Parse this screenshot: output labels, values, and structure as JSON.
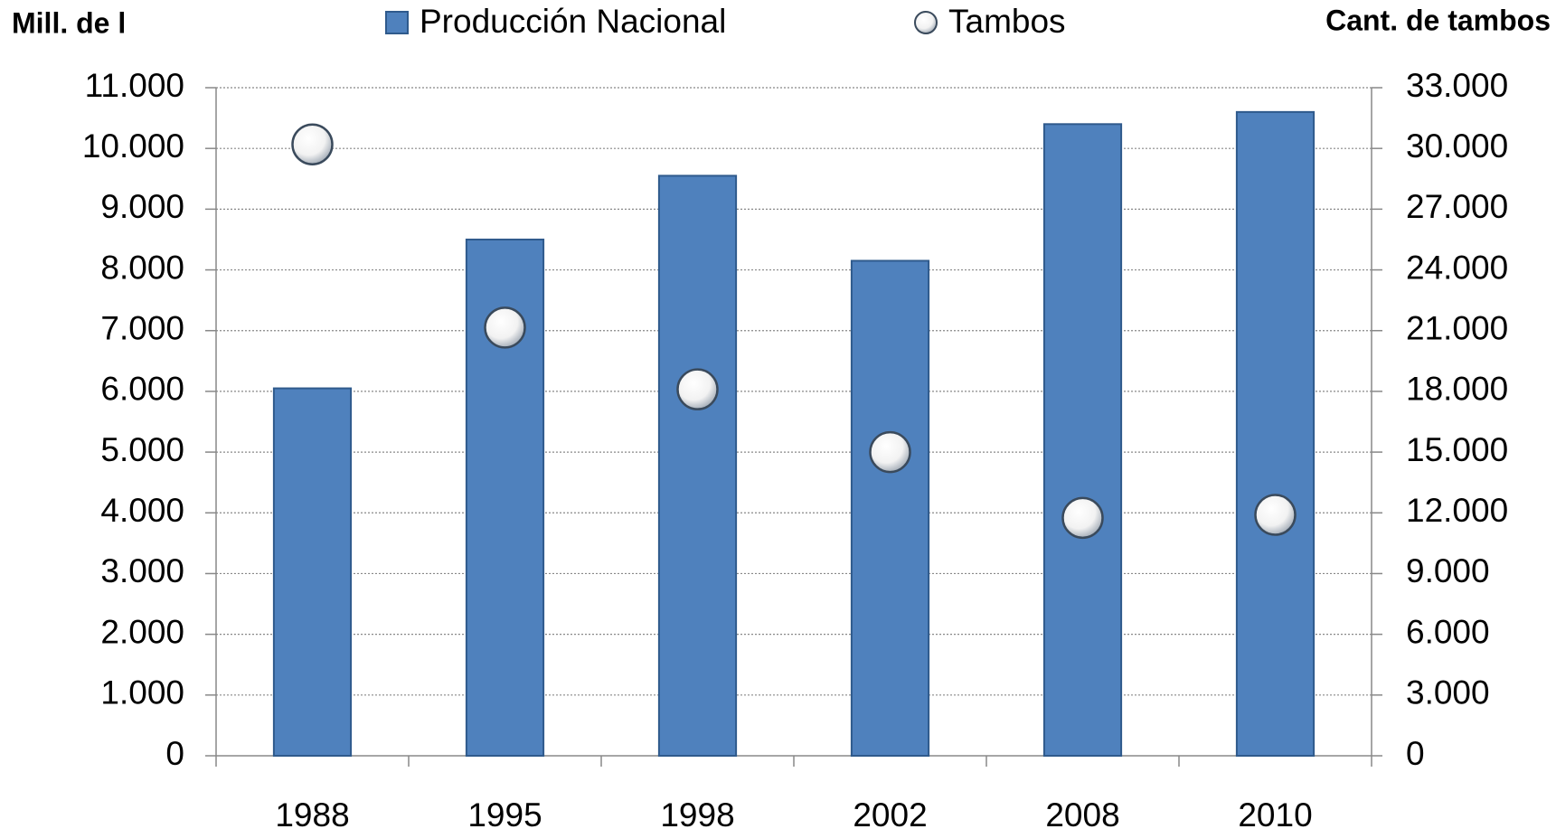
{
  "chart_data": {
    "type": "bar",
    "y_label": "Mill. de l",
    "y2_label": "Cant. de tambos",
    "categories": [
      "1988",
      "1995",
      "1998",
      "2002",
      "2008",
      "2010"
    ],
    "series": [
      {
        "name": "Producción Nacional",
        "type": "bar",
        "color": "#4f81bd",
        "values": [
          6050,
          8500,
          9550,
          8150,
          10400,
          10600
        ]
      },
      {
        "name": "Tambos",
        "type": "scatter",
        "axis": "y2",
        "color": "#ffffff",
        "values": [
          30200,
          21150,
          18100,
          15000,
          11750,
          11900
        ]
      }
    ],
    "ylim": [
      0,
      11000
    ],
    "yticks": [
      0,
      {
        "value": 1000,
        "label": "1.000"
      },
      {
        "value": 2000,
        "label": "2.000"
      },
      {
        "value": 3000,
        "label": "3.000"
      },
      {
        "value": 4000,
        "label": "4.000"
      },
      {
        "value": 5000,
        "label": "5.000"
      },
      {
        "value": 6000,
        "label": "6.000"
      },
      {
        "value": 7000,
        "label": "7.000"
      },
      {
        "value": 8000,
        "label": "8.000"
      },
      {
        "value": 9000,
        "label": "9.000"
      },
      {
        "value": 10000,
        "label": "10.000"
      },
      {
        "value": 11000,
        "label": "11.000"
      }
    ],
    "y2lim": [
      0,
      33000
    ],
    "y2ticks": [
      0,
      {
        "value": 3000,
        "label": "3.000"
      },
      {
        "value": 6000,
        "label": "6.000"
      },
      {
        "value": 9000,
        "label": "9.000"
      },
      {
        "value": 12000,
        "label": "12.000"
      },
      {
        "value": 15000,
        "label": "15.000"
      },
      {
        "value": 18000,
        "label": "18.000"
      },
      {
        "value": 21000,
        "label": "21.000"
      },
      {
        "value": 24000,
        "label": "24.000"
      },
      {
        "value": 27000,
        "label": "27.000"
      },
      {
        "value": 30000,
        "label": "30.000"
      },
      {
        "value": 33000,
        "label": "33.000"
      }
    ],
    "grid": true,
    "legend": "top"
  }
}
